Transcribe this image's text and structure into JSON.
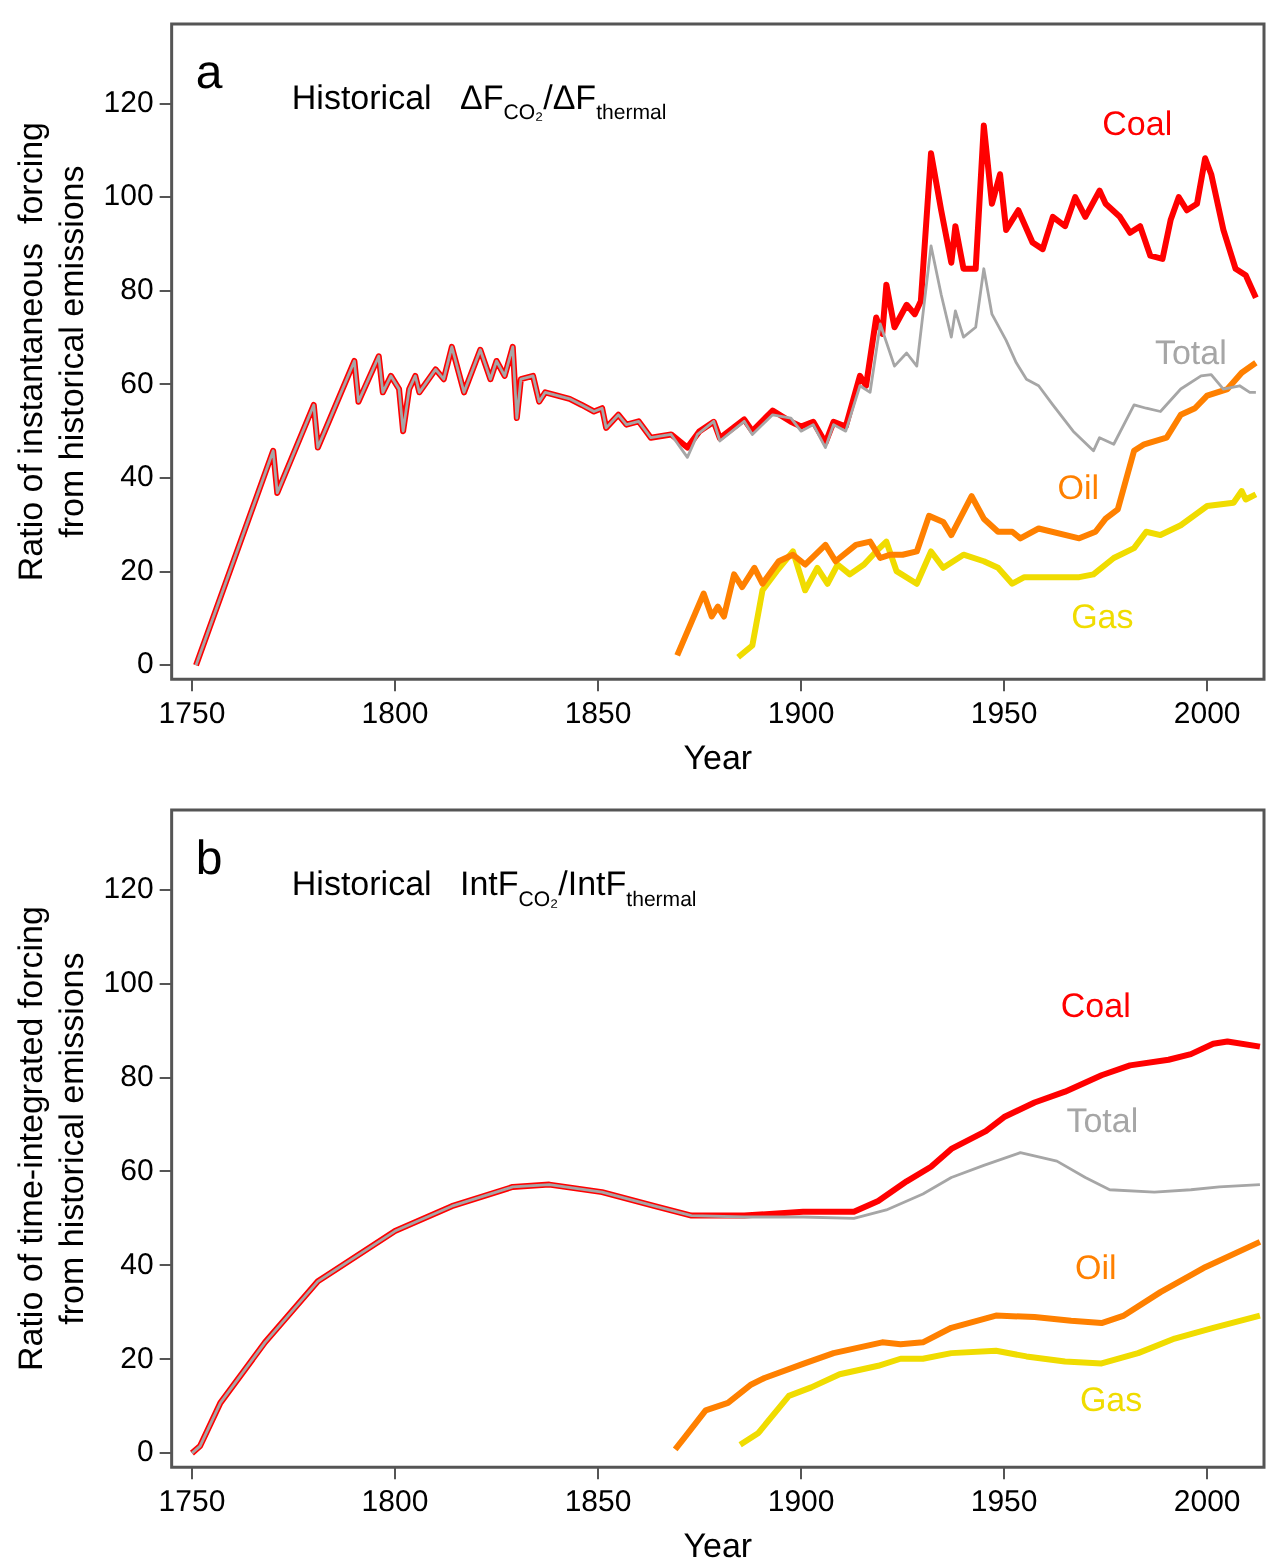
{
  "chart_data": [
    {
      "type": "line",
      "title": "Historical   ΔF$_{CO₂}$/ΔF$_{thermal}$",
      "annotations": [
        "a"
      ],
      "xlabel": "Year",
      "ylabel": "Ratio of instantaneous  forcing\nfrom historical emissions",
      "xlim": [
        1745,
        2014
      ],
      "ylim": [
        -3,
        137
      ],
      "xticks": [
        1750,
        1800,
        1850,
        1900,
        1950,
        2000
      ],
      "yticks": [
        0,
        20,
        40,
        60,
        80,
        100,
        120
      ],
      "grid": false,
      "legend": false,
      "marker": "none",
      "line_style": "solid",
      "series": [
        {
          "name": "Coal",
          "color": "#ff0000",
          "x": [
            1751,
            1770,
            1771,
            1780,
            1781,
            1790,
            1791,
            1796,
            1797,
            1799,
            1801,
            1802,
            1803.5,
            1805,
            1806,
            1810,
            1812,
            1814,
            1817,
            1821,
            1823.5,
            1825,
            1827,
            1829,
            1830,
            1831,
            1834,
            1835.5,
            1837,
            1840,
            1843,
            1846,
            1849,
            1851,
            1852,
            1855,
            1857,
            1860,
            1863,
            1868,
            1872,
            1875,
            1878.5,
            1880,
            1886,
            1888,
            1893,
            1897.5,
            1900,
            1903,
            1906,
            1908,
            1911,
            1914.5,
            1916,
            1918.5,
            1920,
            1921,
            1923,
            1926,
            1928,
            1929.5,
            1932,
            1934.5,
            1937,
            1938,
            1940,
            1943,
            1945,
            1947,
            1949,
            1950.5,
            1953.5,
            1957,
            1959.5,
            1962,
            1965,
            1967.5,
            1970,
            1973.5,
            1975,
            1978.5,
            1981,
            1983.5,
            1986,
            1989,
            1991,
            1993,
            1995,
            1997.5,
            1999.5,
            2001,
            2004,
            2007,
            2009.5,
            2012
          ],
          "values": [
            0,
            45.8,
            36.8,
            55.6,
            46.5,
            65,
            56.3,
            66,
            58.3,
            61.8,
            59,
            50,
            59,
            61.8,
            58.3,
            63.2,
            61.1,
            68,
            58.3,
            67.4,
            61.1,
            65,
            61.8,
            68,
            52.8,
            61.1,
            61.8,
            56.3,
            58.3,
            57.6,
            56.9,
            55.6,
            54.2,
            54.9,
            50.7,
            53.5,
            51.4,
            52.1,
            48.6,
            49.3,
            46.5,
            50,
            52,
            48.5,
            52.5,
            50,
            54.4,
            52,
            51,
            52,
            47.5,
            52,
            51,
            61.8,
            59.7,
            74.3,
            70.8,
            81.3,
            72.2,
            77,
            75,
            77.8,
            109.4,
            97.2,
            86,
            93.8,
            84.7,
            84.7,
            115.3,
            98.6,
            104.9,
            93,
            97.2,
            90.3,
            88.9,
            95.8,
            93.8,
            100,
            95.8,
            101.4,
            98.6,
            95.8,
            92.4,
            93.8,
            87.5,
            86.8,
            95.1,
            100,
            97.2,
            98.6,
            108.3,
            104.9,
            93,
            84.7,
            83.3,
            78.5
          ]
        },
        {
          "name": "Total",
          "color": "#a6a6a6",
          "x": [
            1751,
            1770,
            1771,
            1780,
            1781,
            1790,
            1791,
            1796,
            1797,
            1799,
            1801,
            1802,
            1803.5,
            1805,
            1806,
            1810,
            1812,
            1814,
            1817,
            1821,
            1823.5,
            1825,
            1827,
            1829,
            1830,
            1831,
            1834,
            1835.5,
            1837,
            1840,
            1843,
            1846,
            1849,
            1851,
            1852,
            1855,
            1857,
            1860,
            1863,
            1868,
            1872,
            1874.5,
            1878.5,
            1880,
            1886,
            1888,
            1893,
            1897.5,
            1900,
            1903,
            1906,
            1908,
            1911,
            1914.5,
            1917,
            1919.5,
            1923,
            1926,
            1928.5,
            1932,
            1934.5,
            1937,
            1938,
            1940,
            1943,
            1945,
            1947,
            1950.5,
            1953,
            1955.5,
            1958.5,
            1962,
            1967,
            1972,
            1973.5,
            1977,
            1982,
            1985,
            1988.5,
            1993.5,
            1998.5,
            2001,
            2004,
            2008,
            2010.5,
            2012
          ],
          "values": [
            0,
            45.8,
            36.8,
            55.6,
            46.5,
            65,
            56.3,
            66,
            58.3,
            61.8,
            59,
            50,
            59,
            61.8,
            58.3,
            63.2,
            61.1,
            68,
            58.3,
            67.4,
            61.1,
            65,
            61.8,
            68,
            52.8,
            61.1,
            61.8,
            56.3,
            58.3,
            57.6,
            56.9,
            55.6,
            54.2,
            54.9,
            50.7,
            53.5,
            51.4,
            52.1,
            48.6,
            49.3,
            44.4,
            49.3,
            52.1,
            47.9,
            52.1,
            49.3,
            53.5,
            52.8,
            50,
            51.4,
            46.5,
            51.4,
            50,
            59.7,
            58.3,
            72.9,
            63.9,
            66.7,
            63.9,
            89.6,
            79.2,
            70.1,
            75.7,
            70.1,
            72.2,
            84.7,
            75,
            69.4,
            64.6,
            61.1,
            59.7,
            55.6,
            50,
            45.8,
            48.6,
            47.2,
            55.6,
            54.9,
            54.2,
            59,
            61.8,
            62.1,
            59,
            59.7,
            58.3,
            58.3
          ]
        },
        {
          "name": "Oil",
          "color": "#ff8000",
          "x": [
            1869.5,
            1876,
            1878,
            1879.5,
            1881,
            1883.5,
            1885.5,
            1888.5,
            1890.5,
            1894.5,
            1898,
            1901,
            1906,
            1908.5,
            1913.5,
            1917,
            1919.5,
            1922,
            1925,
            1928.5,
            1931.5,
            1935,
            1937,
            1942,
            1945,
            1948.5,
            1952,
            1954,
            1958.5,
            1968.5,
            1972.5,
            1975,
            1978,
            1982,
            1984.5,
            1990,
            1993.5,
            1997,
            2000,
            2005,
            2008.5,
            2012
          ],
          "values": [
            2.1,
            15.3,
            10.4,
            12.5,
            10.4,
            19.4,
            16.7,
            20.8,
            17.4,
            22.2,
            23.6,
            21.5,
            25.7,
            22.2,
            25.7,
            26.4,
            22.9,
            23.6,
            23.6,
            24.3,
            31.9,
            30.6,
            27.8,
            36.1,
            31.3,
            28.5,
            28.5,
            27.1,
            29.2,
            27.1,
            28.5,
            31.3,
            33.3,
            45.8,
            47.2,
            48.6,
            53.5,
            54.9,
            57.6,
            59,
            62.5,
            64.6
          ]
        },
        {
          "name": "Gas",
          "color": "#f0dc00",
          "x": [
            1884.5,
            1888,
            1890.5,
            1894,
            1898,
            1901,
            1904,
            1906.5,
            1909,
            1912,
            1915.5,
            1918.5,
            1921,
            1923.5,
            1928.5,
            1932,
            1935,
            1940,
            1945,
            1948.5,
            1952,
            1955,
            1962,
            1968.5,
            1972,
            1977,
            1982,
            1985,
            1988.5,
            1993.5,
            2000,
            2006.5,
            2008.5,
            2009.5,
            2012
          ],
          "values": [
            1.7,
            4.2,
            16,
            20.1,
            24.3,
            16,
            20.8,
            17.4,
            21.5,
            19.4,
            21.5,
            24.3,
            26.4,
            20.1,
            17.4,
            24.3,
            20.8,
            23.6,
            22.2,
            20.8,
            17.4,
            18.8,
            18.8,
            18.8,
            19.4,
            22.9,
            25,
            28.5,
            27.8,
            29.9,
            34,
            34.7,
            37.2,
            35.4,
            36.5
          ]
        }
      ]
    },
    {
      "type": "line",
      "title": "Historical   IntF$_{CO₂}$/IntF$_{thermal}$",
      "annotations": [
        "b"
      ],
      "xlabel": "Year",
      "ylabel": "Ratio of time-integrated forcing\nfrom historical emissions",
      "xlim": [
        1745,
        2014
      ],
      "ylim": [
        -3,
        137
      ],
      "xticks": [
        1750,
        1800,
        1850,
        1900,
        1950,
        2000
      ],
      "yticks": [
        0,
        20,
        40,
        60,
        80,
        100,
        120
      ],
      "grid": false,
      "legend": false,
      "marker": "none",
      "line_style": "solid",
      "series": [
        {
          "name": "Coal",
          "color": "#ff0000",
          "x": [
            1750,
            1752,
            1757,
            1768,
            1781,
            1800,
            1814,
            1829,
            1838,
            1851,
            1864,
            1873,
            1886,
            1900.5,
            1913,
            1919,
            1926,
            1932,
            1937,
            1945.5,
            1950,
            1957.5,
            1965,
            1974,
            1981,
            1990.5,
            1996,
            2001.5,
            2005,
            2013
          ],
          "values": [
            0,
            1.5,
            10.7,
            23.6,
            36.6,
            47.3,
            52.6,
            56.7,
            57.2,
            55.6,
            52.6,
            50.6,
            50.6,
            51.4,
            51.4,
            53.7,
            57.9,
            61,
            64.8,
            68.6,
            71.6,
            74.7,
            77,
            80.5,
            82.6,
            83.8,
            85,
            87.2,
            87.7,
            86.6
          ]
        },
        {
          "name": "Total",
          "color": "#a6a6a6",
          "x": [
            1750,
            1752,
            1757,
            1768,
            1781,
            1800,
            1814,
            1829,
            1838,
            1851,
            1864,
            1873,
            1886,
            1900.5,
            1913,
            1921,
            1930,
            1937,
            1945,
            1954,
            1963,
            1970,
            1976,
            1987,
            1996,
            2003,
            2013
          ],
          "values": [
            0,
            1.5,
            10.7,
            23.6,
            36.6,
            47.3,
            52.6,
            56.7,
            57.2,
            55.6,
            52.6,
            50.6,
            50.3,
            50.3,
            50,
            51.8,
            55.2,
            58.7,
            61.3,
            64,
            62.2,
            58.7,
            56.1,
            55.6,
            56.1,
            56.7,
            57.2
          ]
        },
        {
          "name": "Oil",
          "color": "#ff8000",
          "x": [
            1869,
            1871,
            1876.5,
            1882,
            1887.5,
            1891,
            1900.5,
            1908,
            1920,
            1924.5,
            1930,
            1937,
            1948,
            1957.5,
            1966.5,
            1974,
            1979.5,
            1988.5,
            1999.5,
            2013
          ],
          "values": [
            0.8,
            3,
            9.1,
            10.7,
            14.5,
            16,
            19,
            21.3,
            23.6,
            23.2,
            23.6,
            26.7,
            29.3,
            29,
            28.2,
            27.7,
            29.3,
            34.3,
            39.6,
            45
          ]
        },
        {
          "name": "Gas",
          "color": "#f0dc00",
          "x": [
            1885,
            1889.5,
            1897,
            1902.5,
            1909.5,
            1919,
            1924.5,
            1930,
            1937,
            1948,
            1955.5,
            1965,
            1974,
            1983,
            1992,
            2001.5,
            2013
          ],
          "values": [
            1.8,
            4.3,
            12.2,
            14,
            16.8,
            18.6,
            20.1,
            20.1,
            21.3,
            21.8,
            20.6,
            19.5,
            19.1,
            21.3,
            24.4,
            26.7,
            29.3
          ]
        }
      ]
    }
  ]
}
